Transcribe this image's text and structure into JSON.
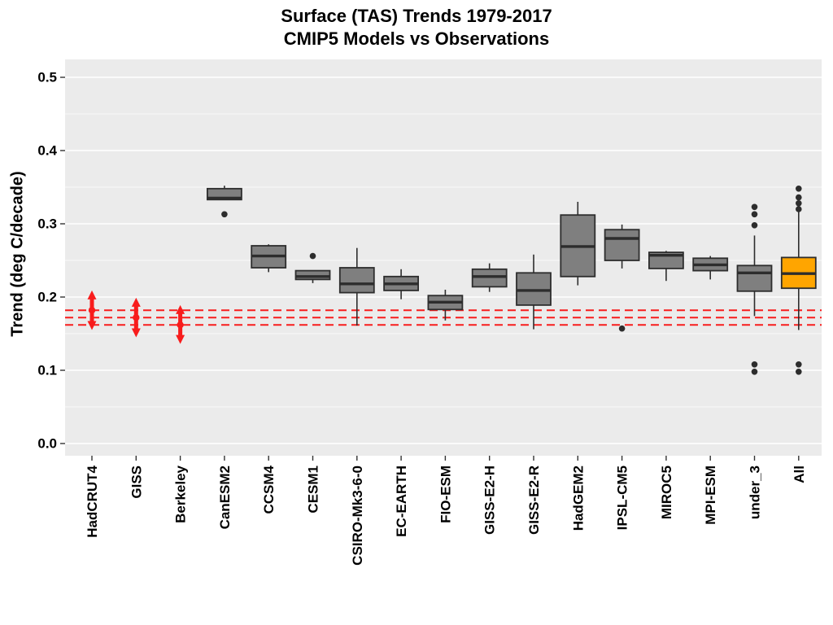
{
  "title": {
    "line1": "Surface (TAS) Trends 1979-2017",
    "line2": "CMIP5 Models vs Observations"
  },
  "colors": {
    "panel_background": "#EBEBEB",
    "gridline": "#FFFFFF",
    "box_fill": "#7F7F7F",
    "box_border": "#2D2D2D",
    "highlight_box_fill": "#FFA500",
    "observation_red": "#F81C1C",
    "reference_line_red": "#F81C1C",
    "tick_color": "#333333",
    "text_color": "#000000"
  },
  "chart_data": {
    "type": "boxplot",
    "title": "Surface (TAS) Trends 1979-2017",
    "subtitle": "CMIP5 Models vs Observations",
    "xlabel": "",
    "ylabel": "Trend (deg C/decade)",
    "ylim": [
      -0.017,
      0.525
    ],
    "y_major_ticks": [
      0.0,
      0.1,
      0.2,
      0.3,
      0.4,
      0.5
    ],
    "y_minor_ticks": [
      0.05,
      0.15,
      0.25,
      0.35,
      0.45
    ],
    "grid": "on",
    "legend_position": "none",
    "categories": [
      "HadCRUT4",
      "GISS",
      "Berkeley",
      "CanESM2",
      "CCSM4",
      "CESM1",
      "CSIRO-Mk3-6-0",
      "EC-EARTH",
      "FIO-ESM",
      "GISS-E2-H",
      "GISS-E2-R",
      "HadGEM2",
      "IPSL-CM5",
      "MIROC5",
      "MPI-ESM",
      "under_3",
      "All"
    ],
    "observations": [
      {
        "name": "HadCRUT4",
        "category_index": 0,
        "low": 0.155,
        "high": 0.209,
        "center": 0.182
      },
      {
        "name": "GISS",
        "category_index": 1,
        "low": 0.145,
        "high": 0.199,
        "center": 0.172
      },
      {
        "name": "Berkeley",
        "category_index": 2,
        "low": 0.136,
        "high": 0.189,
        "center": 0.162
      }
    ],
    "reference_lines": {
      "style": "dashed",
      "values": [
        0.182,
        0.172,
        0.162
      ]
    },
    "boxes": [
      {
        "name": "CanESM2",
        "category_index": 3,
        "whisker_low": 0.333,
        "q1": 0.333,
        "median": 0.335,
        "q3": 0.348,
        "whisker_high": 0.352,
        "outliers": [
          0.313
        ],
        "highlight": false
      },
      {
        "name": "CCSM4",
        "category_index": 4,
        "whisker_low": 0.234,
        "q1": 0.24,
        "median": 0.256,
        "q3": 0.27,
        "whisker_high": 0.272,
        "outliers": [],
        "highlight": false
      },
      {
        "name": "CESM1",
        "category_index": 5,
        "whisker_low": 0.219,
        "q1": 0.224,
        "median": 0.228,
        "q3": 0.236,
        "whisker_high": 0.236,
        "outliers": [
          0.256
        ],
        "highlight": false
      },
      {
        "name": "CSIRO-Mk3-6-0",
        "category_index": 6,
        "whisker_low": 0.161,
        "q1": 0.206,
        "median": 0.218,
        "q3": 0.24,
        "whisker_high": 0.267,
        "outliers": [],
        "highlight": false
      },
      {
        "name": "EC-EARTH",
        "category_index": 7,
        "whisker_low": 0.197,
        "q1": 0.209,
        "median": 0.218,
        "q3": 0.228,
        "whisker_high": 0.238,
        "outliers": [],
        "highlight": false
      },
      {
        "name": "FIO-ESM",
        "category_index": 8,
        "whisker_low": 0.168,
        "q1": 0.183,
        "median": 0.193,
        "q3": 0.202,
        "whisker_high": 0.21,
        "outliers": [],
        "highlight": false
      },
      {
        "name": "GISS-E2-H",
        "category_index": 9,
        "whisker_low": 0.207,
        "q1": 0.214,
        "median": 0.228,
        "q3": 0.238,
        "whisker_high": 0.246,
        "outliers": [],
        "highlight": false
      },
      {
        "name": "GISS-E2-R",
        "category_index": 10,
        "whisker_low": 0.156,
        "q1": 0.189,
        "median": 0.209,
        "q3": 0.233,
        "whisker_high": 0.258,
        "outliers": [],
        "highlight": false
      },
      {
        "name": "HadGEM2",
        "category_index": 11,
        "whisker_low": 0.216,
        "q1": 0.228,
        "median": 0.269,
        "q3": 0.312,
        "whisker_high": 0.33,
        "outliers": [],
        "highlight": false
      },
      {
        "name": "IPSL-CM5",
        "category_index": 12,
        "whisker_low": 0.239,
        "q1": 0.25,
        "median": 0.28,
        "q3": 0.292,
        "whisker_high": 0.299,
        "outliers": [
          0.157
        ],
        "highlight": false
      },
      {
        "name": "MIROC5",
        "category_index": 13,
        "whisker_low": 0.222,
        "q1": 0.239,
        "median": 0.257,
        "q3": 0.261,
        "whisker_high": 0.263,
        "outliers": [],
        "highlight": false
      },
      {
        "name": "MPI-ESM",
        "category_index": 14,
        "whisker_low": 0.224,
        "q1": 0.236,
        "median": 0.244,
        "q3": 0.253,
        "whisker_high": 0.256,
        "outliers": [],
        "highlight": false
      },
      {
        "name": "under_3",
        "category_index": 15,
        "whisker_low": 0.174,
        "q1": 0.208,
        "median": 0.233,
        "q3": 0.243,
        "whisker_high": 0.284,
        "outliers": [
          0.323,
          0.313,
          0.298,
          0.108,
          0.098
        ],
        "highlight": false
      },
      {
        "name": "All",
        "category_index": 16,
        "whisker_low": 0.155,
        "q1": 0.212,
        "median": 0.232,
        "q3": 0.254,
        "whisker_high": 0.319,
        "outliers": [
          0.348,
          0.336,
          0.328,
          0.32,
          0.108,
          0.098
        ],
        "highlight": true
      }
    ]
  }
}
